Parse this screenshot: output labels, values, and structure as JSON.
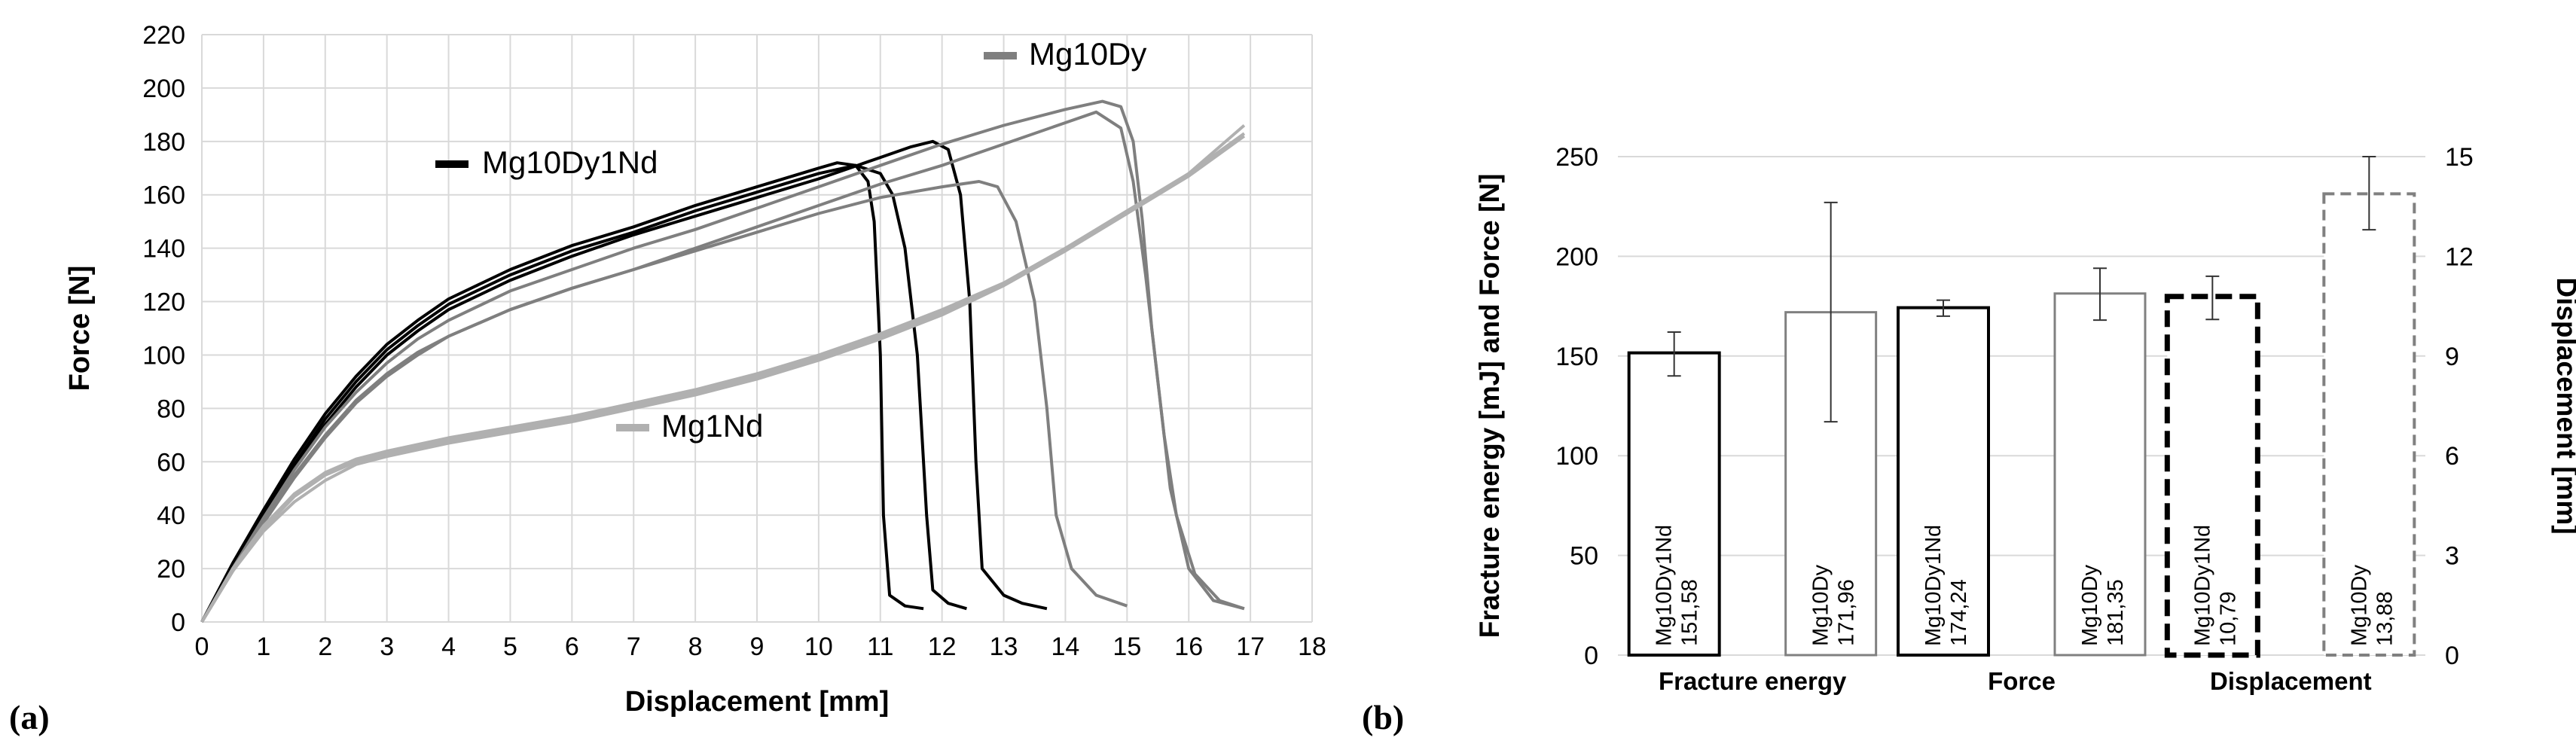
{
  "panels": {
    "a": "(a)",
    "b": "(b)"
  },
  "chart_data": [
    {
      "type": "line",
      "xlabel": "Displacement [mm]",
      "ylabel": "Force [N]",
      "xlim": [
        0,
        18
      ],
      "ylim": [
        0,
        220
      ],
      "xticks": [
        0,
        1,
        2,
        3,
        4,
        5,
        6,
        7,
        8,
        9,
        10,
        11,
        12,
        13,
        14,
        15,
        16,
        17,
        18
      ],
      "yticks": [
        0,
        20,
        40,
        60,
        80,
        100,
        120,
        140,
        160,
        180,
        200,
        220
      ],
      "grid": true,
      "legend_labels": [
        "Mg10Dy1Nd",
        "Mg10Dy",
        "Mg1Nd"
      ],
      "series": [
        {
          "name": "Mg10Dy1Nd",
          "color": "#000000",
          "curves": [
            [
              [
                0,
                0
              ],
              [
                0.5,
                22
              ],
              [
                1,
                42
              ],
              [
                1.5,
                61
              ],
              [
                2,
                78
              ],
              [
                2.5,
                92
              ],
              [
                3,
                104
              ],
              [
                3.5,
                113
              ],
              [
                4,
                121
              ],
              [
                5,
                132
              ],
              [
                6,
                141
              ],
              [
                7,
                148
              ],
              [
                8,
                156
              ],
              [
                9,
                163
              ],
              [
                10,
                170
              ],
              [
                10.3,
                172
              ],
              [
                10.6,
                171
              ],
              [
                10.8,
                165
              ],
              [
                10.9,
                150
              ],
              [
                11,
                100
              ],
              [
                11.05,
                40
              ],
              [
                11.15,
                10
              ],
              [
                11.4,
                6
              ],
              [
                11.7,
                5
              ]
            ],
            [
              [
                0,
                0
              ],
              [
                0.5,
                21
              ],
              [
                1,
                41
              ],
              [
                1.5,
                59
              ],
              [
                2,
                76
              ],
              [
                2.5,
                90
              ],
              [
                3,
                102
              ],
              [
                3.5,
                111
              ],
              [
                4,
                119
              ],
              [
                5,
                130
              ],
              [
                6,
                139
              ],
              [
                7,
                146
              ],
              [
                8,
                154
              ],
              [
                9,
                161
              ],
              [
                10,
                168
              ],
              [
                10.6,
                171
              ],
              [
                11,
                168
              ],
              [
                11.2,
                160
              ],
              [
                11.4,
                140
              ],
              [
                11.6,
                100
              ],
              [
                11.75,
                40
              ],
              [
                11.85,
                12
              ],
              [
                12.1,
                7
              ],
              [
                12.4,
                5
              ]
            ],
            [
              [
                0,
                0
              ],
              [
                0.5,
                20
              ],
              [
                1,
                40
              ],
              [
                1.5,
                58
              ],
              [
                2,
                74
              ],
              [
                2.5,
                88
              ],
              [
                3,
                100
              ],
              [
                3.5,
                109
              ],
              [
                4,
                117
              ],
              [
                5,
                128
              ],
              [
                6,
                137
              ],
              [
                7,
                145
              ],
              [
                8,
                152
              ],
              [
                9,
                159
              ],
              [
                10,
                166
              ],
              [
                11,
                174
              ],
              [
                11.5,
                178
              ],
              [
                11.85,
                180
              ],
              [
                12.1,
                177
              ],
              [
                12.3,
                160
              ],
              [
                12.45,
                120
              ],
              [
                12.55,
                60
              ],
              [
                12.65,
                20
              ],
              [
                13,
                10
              ],
              [
                13.3,
                7
              ],
              [
                13.7,
                5
              ]
            ]
          ]
        },
        {
          "name": "Mg10Dy",
          "color": "#7f7f7f",
          "curves": [
            [
              [
                0,
                0
              ],
              [
                0.5,
                19
              ],
              [
                1,
                38
              ],
              [
                1.5,
                55
              ],
              [
                2,
                70
              ],
              [
                2.5,
                83
              ],
              [
                3,
                93
              ],
              [
                3.5,
                101
              ],
              [
                4,
                107
              ],
              [
                5,
                117
              ],
              [
                6,
                125
              ],
              [
                7,
                132
              ],
              [
                8,
                139
              ],
              [
                9,
                146
              ],
              [
                10,
                153
              ],
              [
                11,
                159
              ],
              [
                12,
                163
              ],
              [
                12.6,
                165
              ],
              [
                12.9,
                163
              ],
              [
                13.2,
                150
              ],
              [
                13.5,
                120
              ],
              [
                13.7,
                80
              ],
              [
                13.85,
                40
              ],
              [
                14.1,
                20
              ],
              [
                14.5,
                10
              ],
              [
                15,
                6
              ]
            ],
            [
              [
                0,
                0
              ],
              [
                0.5,
                19
              ],
              [
                1,
                37
              ],
              [
                1.5,
                54
              ],
              [
                2,
                69
              ],
              [
                2.5,
                82
              ],
              [
                3,
                92
              ],
              [
                3.5,
                100
              ],
              [
                4,
                107
              ],
              [
                5,
                117
              ],
              [
                6,
                125
              ],
              [
                7,
                132
              ],
              [
                8,
                140
              ],
              [
                9,
                148
              ],
              [
                10,
                156
              ],
              [
                11,
                164
              ],
              [
                12,
                171
              ],
              [
                13,
                179
              ],
              [
                14,
                187
              ],
              [
                14.5,
                191
              ],
              [
                14.9,
                185
              ],
              [
                15.1,
                165
              ],
              [
                15.3,
                130
              ],
              [
                15.5,
                90
              ],
              [
                15.7,
                50
              ],
              [
                16,
                20
              ],
              [
                16.4,
                8
              ],
              [
                16.9,
                5
              ]
            ],
            [
              [
                0,
                0
              ],
              [
                0.5,
                20
              ],
              [
                1,
                39
              ],
              [
                1.5,
                57
              ],
              [
                2,
                73
              ],
              [
                2.5,
                86
              ],
              [
                3,
                97
              ],
              [
                3.5,
                106
              ],
              [
                4,
                113
              ],
              [
                5,
                124
              ],
              [
                6,
                132
              ],
              [
                7,
                140
              ],
              [
                8,
                147
              ],
              [
                9,
                155
              ],
              [
                10,
                163
              ],
              [
                11,
                171
              ],
              [
                12,
                179
              ],
              [
                13,
                186
              ],
              [
                14,
                192
              ],
              [
                14.6,
                195
              ],
              [
                14.9,
                193
              ],
              [
                15.1,
                180
              ],
              [
                15.25,
                150
              ],
              [
                15.4,
                110
              ],
              [
                15.6,
                70
              ],
              [
                15.8,
                40
              ],
              [
                16.1,
                18
              ],
              [
                16.5,
                8
              ],
              [
                16.9,
                5
              ]
            ]
          ]
        },
        {
          "name": "Mg1Nd",
          "color": "#b0b0b0",
          "curves": [
            [
              [
                0,
                0
              ],
              [
                0.5,
                20
              ],
              [
                1,
                36
              ],
              [
                1.5,
                48
              ],
              [
                2,
                56
              ],
              [
                2.5,
                61
              ],
              [
                3,
                64
              ],
              [
                4,
                69
              ],
              [
                5,
                73
              ],
              [
                6,
                77
              ],
              [
                7,
                82
              ],
              [
                8,
                87
              ],
              [
                9,
                93
              ],
              [
                10,
                100
              ],
              [
                11,
                108
              ],
              [
                12,
                117
              ],
              [
                13,
                127
              ],
              [
                14,
                140
              ],
              [
                15,
                154
              ],
              [
                16,
                168
              ],
              [
                16.9,
                186
              ]
            ],
            [
              [
                0,
                0
              ],
              [
                0.5,
                19
              ],
              [
                1,
                34
              ],
              [
                1.5,
                45
              ],
              [
                2,
                53
              ],
              [
                2.5,
                59
              ],
              [
                3,
                62
              ],
              [
                4,
                67
              ],
              [
                5,
                71
              ],
              [
                6,
                75
              ],
              [
                7,
                80
              ],
              [
                8,
                85
              ],
              [
                9,
                91
              ],
              [
                10,
                98
              ],
              [
                11,
                106
              ],
              [
                12,
                115
              ],
              [
                13,
                126
              ],
              [
                14,
                139
              ],
              [
                15,
                153
              ],
              [
                16,
                167
              ],
              [
                16.9,
                182
              ]
            ],
            [
              [
                0,
                0
              ],
              [
                0.5,
                19
              ],
              [
                1,
                35
              ],
              [
                1.5,
                47
              ],
              [
                2,
                55
              ],
              [
                2.5,
                60
              ],
              [
                3,
                63
              ],
              [
                4,
                68
              ],
              [
                5,
                72
              ],
              [
                6,
                76
              ],
              [
                7,
                81
              ],
              [
                8,
                86
              ],
              [
                9,
                92
              ],
              [
                10,
                99
              ],
              [
                11,
                107
              ],
              [
                12,
                116
              ],
              [
                13,
                126
              ],
              [
                14,
                139
              ],
              [
                15,
                153
              ],
              [
                16,
                168
              ],
              [
                16.9,
                183
              ]
            ]
          ]
        }
      ]
    },
    {
      "type": "bar",
      "ylabel_left": "Fracture energy  [mJ] and Force [N]",
      "ylabel_right": "Displacement [mm]",
      "ylim_left": [
        0,
        250
      ],
      "ylim_right": [
        0,
        15
      ],
      "yticks_left": [
        0,
        50,
        100,
        150,
        200,
        250
      ],
      "yticks_right": [
        0,
        3,
        6,
        9,
        12,
        15
      ],
      "grid": true,
      "groups": [
        {
          "label": "Fracture energy",
          "axis": "left",
          "bars": [
            {
              "name": "Mg10Dy1Nd",
              "value_label": "151,58",
              "value": 151.58,
              "err_low": 140,
              "err_high": 162,
              "style": "solid-black"
            },
            {
              "name": "Mg10Dy",
              "value_label": "171,96",
              "value": 171.96,
              "err_low": 117,
              "err_high": 227,
              "style": "solid-gray"
            }
          ]
        },
        {
          "label": "Force",
          "axis": "left",
          "bars": [
            {
              "name": "Mg10Dy1Nd",
              "value_label": "174,24",
              "value": 174.24,
              "err_low": 170,
              "err_high": 178,
              "style": "solid-black"
            },
            {
              "name": "Mg10Dy",
              "value_label": "181,35",
              "value": 181.35,
              "err_low": 168,
              "err_high": 194,
              "style": "solid-gray"
            }
          ]
        },
        {
          "label": "Displacement",
          "axis": "right",
          "bars": [
            {
              "name": "Mg10Dy1Nd",
              "value_label": "10,79",
              "value": 10.79,
              "err_low": 10.1,
              "err_high": 11.4,
              "style": "dashed-black"
            },
            {
              "name": "Mg10Dy",
              "value_label": "13,88",
              "value": 13.88,
              "err_low": 12.8,
              "err_high": 15.0,
              "style": "dashed-gray"
            }
          ]
        }
      ]
    }
  ]
}
